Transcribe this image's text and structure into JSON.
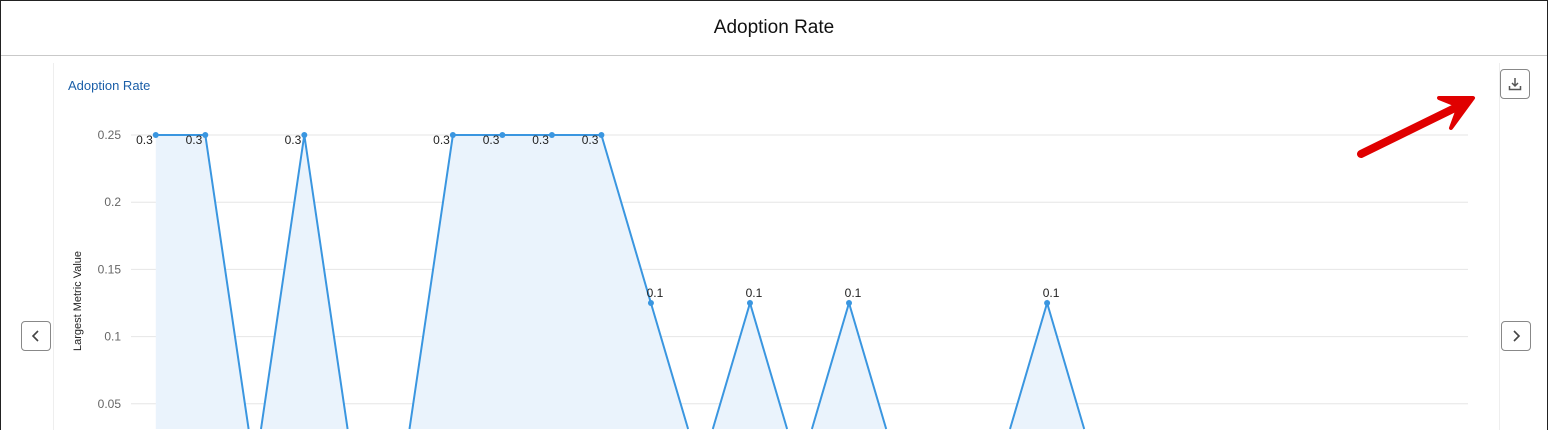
{
  "header": {
    "title": "Adoption Rate"
  },
  "chart_data": {
    "type": "area",
    "title": "Adoption Rate",
    "ylabel": "Largest Metric Value",
    "xlabel": "",
    "y_ticks": [
      0.25,
      0.2,
      0.15,
      0.1,
      0.05
    ],
    "ylim": [
      0,
      0.25
    ],
    "grid": true,
    "values": [
      0.25,
      0.25,
      0,
      0.25,
      0,
      0,
      0.25,
      0.25,
      0.25,
      0.25,
      0.125,
      0,
      0.125,
      0,
      0.125,
      0,
      0,
      0,
      0.125,
      0,
      0,
      0,
      0,
      0,
      0,
      0,
      0
    ],
    "data_labels": [
      "0.3",
      "0.3",
      "",
      "0.3",
      "",
      "",
      "0.3",
      "0.3",
      "0.3",
      "0.3",
      "0.1",
      "",
      "0.1",
      "",
      "0.1",
      "",
      "",
      "",
      "0.1",
      "",
      "",
      "",
      "",
      "",
      "",
      "",
      ""
    ],
    "colors": {
      "line": "#3a96e0",
      "fill": "#eaf3fc",
      "title": "#1b5fa8"
    }
  },
  "controls": {
    "prev": "previous-icon",
    "next": "next-icon",
    "download": "download-icon"
  },
  "annotation": {
    "color": "#e00000"
  }
}
